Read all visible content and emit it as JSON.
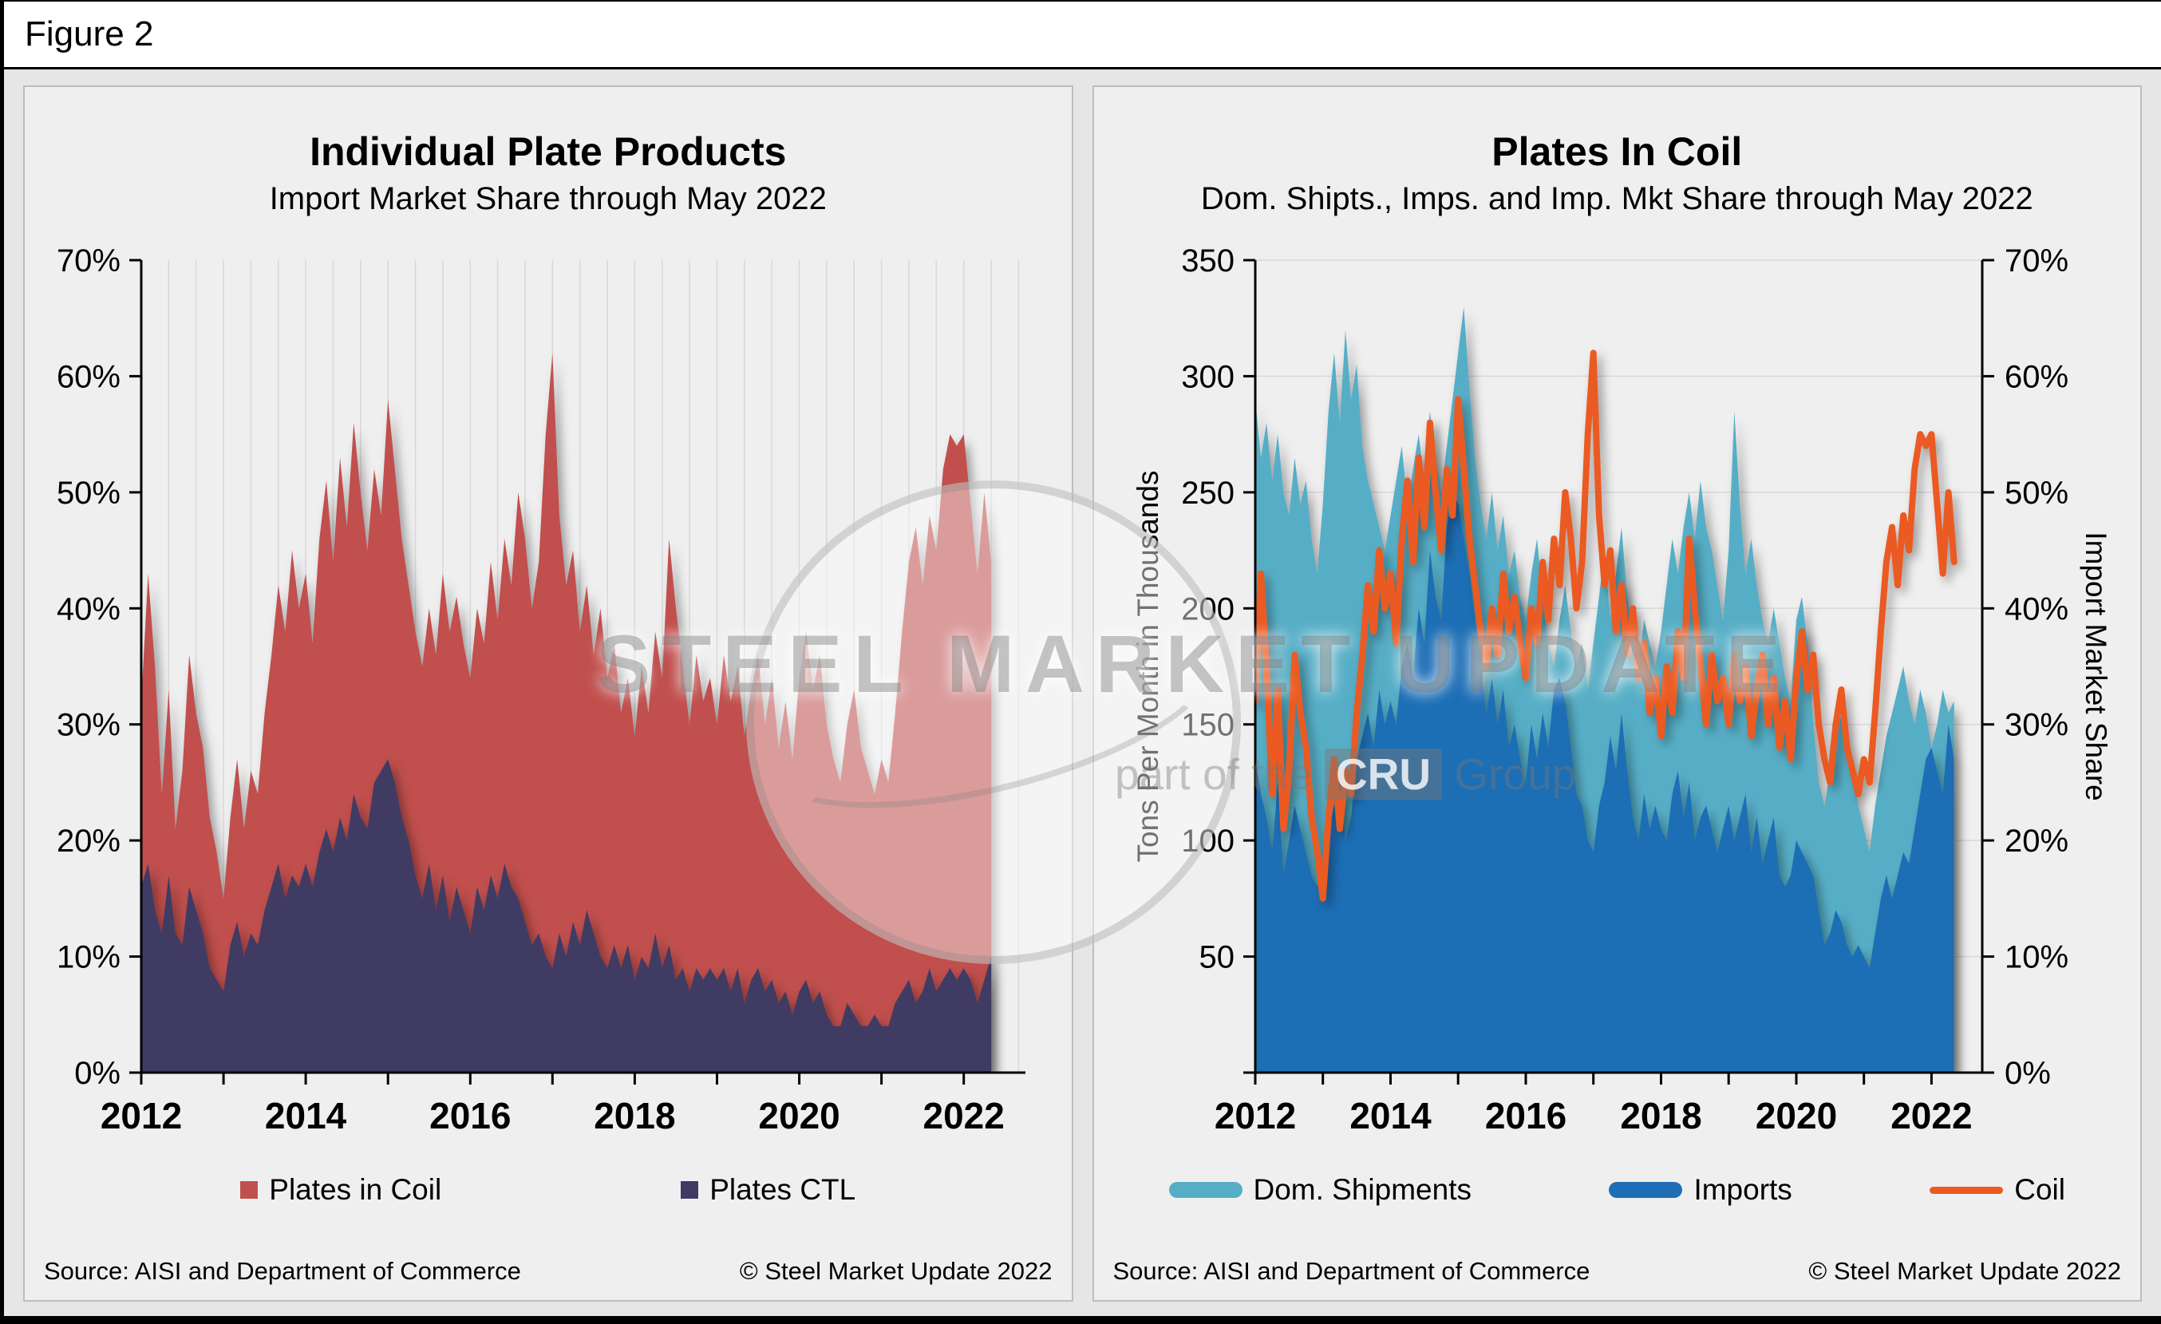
{
  "figure": {
    "label": "Figure 2"
  },
  "watermark": {
    "text": "STEEL MARKET UPDATE",
    "tagline_prefix": "part of the ",
    "tagline_box": "CRU",
    "tagline_suffix": " Group"
  },
  "panels": [
    {
      "title": "Individual Plate Products",
      "subtitle": "Import Market Share through May 2022",
      "source": "Source: AISI and Department of Commerce",
      "copyright": "© Steel Market Update 2022",
      "legend": [
        {
          "label": "Plates in Coil",
          "color": "#c0504d",
          "swatch": "square"
        },
        {
          "label": "Plates CTL",
          "color": "#3f3a64",
          "swatch": "square"
        }
      ]
    },
    {
      "title": "Plates In Coil",
      "subtitle": "Dom. Shipts., Imps. and Imp. Mkt Share through May 2022",
      "source": "Source: AISI and Department of Commerce",
      "copyright": "© Steel Market Update 2022",
      "legend": [
        {
          "label": "Dom. Shipments",
          "color": "#56aec6",
          "swatch": "bar"
        },
        {
          "label": "Imports",
          "color": "#1f6eb5",
          "swatch": "bar"
        },
        {
          "label": "Coil",
          "color": "#ea5a24",
          "swatch": "line"
        }
      ]
    }
  ],
  "chart_data": [
    {
      "type": "area",
      "title": "Individual Plate Products",
      "subtitle": "Import Market Share through May 2022",
      "x_start": 2012,
      "x_domain": [
        2012,
        2022.75
      ],
      "x_year_labels": [
        2012,
        2014,
        2016,
        2018,
        2020,
        2022
      ],
      "ylim": [
        0,
        70
      ],
      "y_unit": "%",
      "y_ticks": [
        0,
        10,
        20,
        30,
        40,
        50,
        60,
        70
      ],
      "grid": "vertical",
      "legend_position": "bottom",
      "series": [
        {
          "name": "Plates in Coil",
          "kind": "area",
          "color": "#c0504d",
          "values": [
            32,
            43,
            35,
            24,
            33,
            21,
            26,
            36,
            31,
            28,
            22,
            19,
            15,
            22,
            27,
            21,
            26,
            24,
            31,
            36,
            42,
            38,
            45,
            40,
            43,
            37,
            46,
            51,
            44,
            53,
            47,
            56,
            50,
            45,
            52,
            48,
            58,
            52,
            46,
            42,
            38,
            35,
            40,
            36,
            43,
            38,
            41,
            37,
            34,
            40,
            37,
            44,
            39,
            46,
            42,
            50,
            46,
            40,
            44,
            55,
            62,
            48,
            42,
            45,
            38,
            42,
            36,
            40,
            34,
            37,
            31,
            34,
            29,
            35,
            31,
            38,
            34,
            46,
            40,
            35,
            30,
            36,
            32,
            34,
            30,
            36,
            32,
            35,
            29,
            33,
            36,
            30,
            34,
            28,
            32,
            27,
            34,
            38,
            33,
            36,
            30,
            27,
            25,
            30,
            33,
            28,
            26,
            24,
            27,
            25,
            31,
            38,
            44,
            47,
            42,
            48,
            45,
            52,
            55,
            54,
            55,
            49,
            43,
            50,
            44
          ]
        },
        {
          "name": "Plates CTL",
          "kind": "area",
          "color": "#3f3a64",
          "values": [
            16,
            18,
            14,
            12,
            17,
            12,
            11,
            16,
            14,
            12,
            9,
            8,
            7,
            11,
            13,
            10,
            12,
            11,
            14,
            16,
            18,
            15,
            17,
            16,
            18,
            16,
            19,
            21,
            19,
            22,
            20,
            24,
            22,
            21,
            25,
            26,
            27,
            25,
            22,
            20,
            17,
            15,
            18,
            14,
            17,
            13,
            16,
            14,
            12,
            16,
            14,
            17,
            15,
            18,
            16,
            15,
            13,
            11,
            12,
            10,
            9,
            12,
            10,
            13,
            11,
            14,
            12,
            10,
            9,
            11,
            9,
            11,
            8,
            10,
            9,
            12,
            9,
            11,
            8,
            9,
            7,
            9,
            8,
            9,
            8,
            9,
            7,
            9,
            6,
            8,
            9,
            7,
            8,
            6,
            7,
            5,
            7,
            8,
            6,
            7,
            5,
            4,
            4,
            6,
            5,
            4,
            4,
            5,
            4,
            4,
            6,
            7,
            8,
            6,
            7,
            9,
            7,
            8,
            9,
            8,
            9,
            8,
            6,
            8,
            10
          ]
        }
      ]
    },
    {
      "type": "combo",
      "title": "Plates In Coil",
      "subtitle": "Dom. Shipts., Imps. and Imp. Mkt Share through May 2022",
      "x_start": 2012,
      "x_domain": [
        2012,
        2022.75
      ],
      "x_year_labels": [
        2012,
        2014,
        2016,
        2018,
        2020,
        2022
      ],
      "y1lim": [
        0,
        350
      ],
      "y1_ticks": [
        0,
        50,
        100,
        150,
        200,
        250,
        300,
        350
      ],
      "y1_grid": [
        50,
        100,
        150,
        200,
        250,
        300,
        350
      ],
      "y1_title": "Tons Per Month in Thousands",
      "y2lim": [
        0,
        70
      ],
      "y2_ticks": [
        0,
        10,
        20,
        30,
        40,
        50,
        60,
        70
      ],
      "y2_unit": "%",
      "y2_title": "Import Market Share",
      "grid": "horizontal",
      "legend_position": "bottom",
      "series": [
        {
          "name": "Dom. Shipments",
          "kind": "area",
          "axis": "y1",
          "color": "#56aec6",
          "values": [
            290,
            265,
            280,
            255,
            275,
            250,
            240,
            265,
            245,
            255,
            230,
            215,
            245,
            285,
            310,
            280,
            320,
            290,
            305,
            270,
            255,
            245,
            235,
            225,
            240,
            255,
            270,
            245,
            260,
            275,
            255,
            285,
            265,
            250,
            270,
            290,
            310,
            330,
            295,
            265,
            245,
            230,
            250,
            225,
            240,
            215,
            225,
            205,
            195,
            215,
            230,
            205,
            185,
            175,
            195,
            210,
            190,
            175,
            185,
            165,
            185,
            205,
            225,
            195,
            215,
            235,
            205,
            190,
            175,
            195,
            185,
            175,
            190,
            210,
            230,
            215,
            235,
            250,
            230,
            255,
            235,
            225,
            210,
            195,
            225,
            285,
            245,
            215,
            230,
            210,
            195,
            185,
            200,
            185,
            170,
            160,
            195,
            205,
            185,
            150,
            125,
            115,
            130,
            145,
            155,
            140,
            130,
            115,
            105,
            95,
            115,
            130,
            145,
            155,
            165,
            175,
            160,
            150,
            165,
            155,
            140,
            150,
            165,
            155,
            160
          ]
        },
        {
          "name": "Imports",
          "kind": "area",
          "axis": "y1",
          "color": "#1f6eb5",
          "values": [
            135,
            120,
            110,
            95,
            125,
            85,
            100,
            115,
            105,
            95,
            85,
            80,
            90,
            105,
            115,
            125,
            100,
            110,
            135,
            145,
            155,
            140,
            165,
            150,
            160,
            150,
            175,
            185,
            170,
            200,
            185,
            225,
            205,
            195,
            235,
            250,
            245,
            230,
            215,
            195,
            175,
            155,
            170,
            150,
            165,
            140,
            150,
            135,
            125,
            150,
            135,
            155,
            140,
            165,
            170,
            160,
            140,
            120,
            115,
            100,
            95,
            115,
            125,
            145,
            130,
            155,
            130,
            110,
            100,
            120,
            105,
            115,
            105,
            100,
            120,
            130,
            110,
            125,
            100,
            110,
            115,
            105,
            95,
            105,
            115,
            100,
            110,
            120,
            95,
            110,
            90,
            100,
            110,
            85,
            80,
            85,
            100,
            95,
            90,
            85,
            70,
            55,
            60,
            70,
            65,
            55,
            50,
            55,
            50,
            45,
            60,
            75,
            85,
            75,
            85,
            95,
            90,
            105,
            120,
            135,
            140,
            130,
            120,
            150,
            135
          ]
        },
        {
          "name": "Coil",
          "kind": "line",
          "axis": "y2",
          "color": "#ea5a24",
          "values": [
            32,
            43,
            35,
            24,
            33,
            21,
            26,
            36,
            31,
            28,
            22,
            19,
            15,
            22,
            27,
            21,
            26,
            24,
            31,
            36,
            42,
            38,
            45,
            40,
            43,
            37,
            46,
            51,
            44,
            53,
            47,
            56,
            50,
            45,
            52,
            48,
            58,
            52,
            46,
            42,
            38,
            35,
            40,
            36,
            43,
            38,
            41,
            37,
            34,
            40,
            37,
            44,
            39,
            46,
            42,
            50,
            46,
            40,
            44,
            55,
            62,
            48,
            42,
            45,
            38,
            42,
            36,
            40,
            34,
            37,
            31,
            34,
            29,
            35,
            31,
            38,
            34,
            46,
            40,
            35,
            30,
            36,
            32,
            34,
            30,
            36,
            32,
            35,
            29,
            33,
            36,
            30,
            34,
            28,
            32,
            27,
            34,
            38,
            33,
            36,
            30,
            27,
            25,
            30,
            33,
            28,
            26,
            24,
            27,
            25,
            31,
            38,
            44,
            47,
            42,
            48,
            45,
            52,
            55,
            54,
            55,
            49,
            43,
            50,
            44
          ]
        }
      ]
    }
  ]
}
